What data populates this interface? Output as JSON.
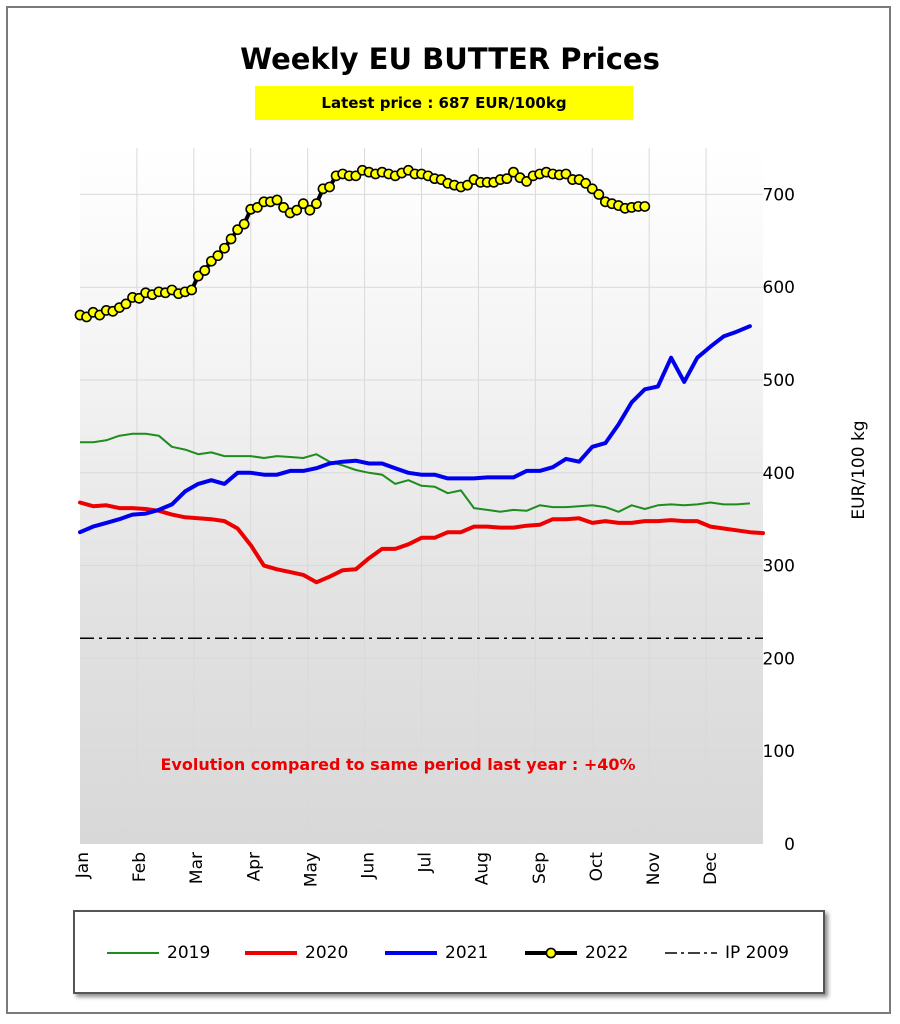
{
  "chart_data": {
    "type": "line",
    "title": "Weekly EU BUTTER Prices",
    "subtitle": "Latest price : 687 EUR/100kg",
    "annotation": "Evolution compared to same period last year : +40%",
    "ylabel": "EUR/100 kg",
    "ylim": [
      0,
      750
    ],
    "yticks": [
      "0",
      "100",
      "200",
      "300",
      "400",
      "500",
      "600",
      "700"
    ],
    "xlim": [
      0,
      52
    ],
    "categories": [
      "Jan",
      "Feb",
      "Mar",
      "Apr",
      "May",
      "Jun",
      "Jul",
      "Aug",
      "Sep",
      "Oct",
      "Nov",
      "Dec"
    ],
    "grid": true,
    "legend_position": "bottom",
    "series": [
      {
        "name": "2019",
        "color": "#1e8c1e",
        "style": "thin",
        "x": [
          0,
          1,
          2,
          3,
          4,
          5,
          6,
          7,
          8,
          9,
          10,
          11,
          12,
          13,
          14,
          15,
          16,
          17,
          18,
          19,
          20,
          21,
          22,
          23,
          24,
          25,
          26,
          27,
          28,
          29,
          30,
          31,
          32,
          33,
          34,
          35,
          36,
          37,
          38,
          39,
          40,
          41,
          42,
          43,
          44,
          45,
          46,
          47,
          48,
          49,
          50,
          51
        ],
        "values": [
          433,
          433,
          435,
          440,
          442,
          442,
          440,
          428,
          425,
          420,
          422,
          418,
          418,
          418,
          416,
          418,
          417,
          416,
          420,
          412,
          408,
          403,
          400,
          398,
          388,
          392,
          386,
          385,
          378,
          381,
          362,
          360,
          358,
          360,
          359,
          365,
          363,
          363,
          364,
          365,
          363,
          358,
          365,
          361,
          365,
          366,
          365,
          366,
          368,
          366,
          366,
          367
        ]
      },
      {
        "name": "2020",
        "color": "#ee0000",
        "style": "thick",
        "x": [
          0,
          1,
          2,
          3,
          4,
          5,
          6,
          7,
          8,
          9,
          10,
          11,
          12,
          13,
          14,
          15,
          16,
          17,
          18,
          19,
          20,
          21,
          22,
          23,
          24,
          25,
          26,
          27,
          28,
          29,
          30,
          31,
          32,
          33,
          34,
          35,
          36,
          37,
          38,
          39,
          40,
          41,
          42,
          43,
          44,
          45,
          46,
          47,
          48,
          49,
          50,
          51,
          52
        ],
        "values": [
          368,
          364,
          365,
          362,
          362,
          361,
          359,
          355,
          352,
          351,
          350,
          348,
          340,
          322,
          300,
          296,
          293,
          290,
          282,
          288,
          295,
          296,
          308,
          318,
          318,
          323,
          330,
          330,
          336,
          336,
          342,
          342,
          341,
          341,
          343,
          344,
          350,
          350,
          351,
          346,
          348,
          346,
          346,
          348,
          348,
          349,
          348,
          348,
          342,
          340,
          338,
          336,
          335
        ]
      },
      {
        "name": "2021",
        "color": "#0000ee",
        "style": "thick",
        "x": [
          0,
          1,
          2,
          3,
          4,
          5,
          6,
          7,
          8,
          9,
          10,
          11,
          12,
          13,
          14,
          15,
          16,
          17,
          18,
          19,
          20,
          21,
          22,
          23,
          24,
          25,
          26,
          27,
          28,
          29,
          30,
          31,
          32,
          33,
          34,
          35,
          36,
          37,
          38,
          39,
          40,
          41,
          42,
          43,
          44,
          45,
          46,
          47,
          48,
          49,
          50,
          51
        ],
        "values": [
          336,
          342,
          346,
          350,
          355,
          356,
          360,
          366,
          380,
          388,
          392,
          388,
          400,
          400,
          398,
          398,
          402,
          402,
          405,
          410,
          412,
          413,
          410,
          410,
          405,
          400,
          398,
          398,
          394,
          394,
          394,
          395,
          395,
          395,
          402,
          402,
          406,
          415,
          412,
          428,
          432,
          452,
          476,
          490,
          493,
          524,
          498,
          524,
          536,
          547,
          552,
          558
        ]
      },
      {
        "name": "2022",
        "color": "#000000",
        "marker_fill": "#ffff00",
        "style": "markers",
        "x": [
          0,
          0.5,
          1,
          1.5,
          2,
          2.5,
          3,
          3.5,
          4,
          4.5,
          5,
          5.5,
          6,
          6.5,
          7,
          7.5,
          8,
          8.5,
          9,
          9.5,
          10,
          10.5,
          11,
          11.5,
          12,
          12.5,
          13,
          13.5,
          14,
          14.5,
          15,
          15.5,
          16,
          16.5,
          17,
          17.5,
          18,
          18.5,
          19,
          19.5,
          20,
          20.5,
          21,
          21.5,
          22,
          22.5,
          23,
          23.5,
          24,
          24.5,
          25,
          25.5,
          26,
          26.5,
          27,
          27.5,
          28,
          28.5,
          29,
          29.5,
          30,
          30.5,
          31,
          31.5,
          32,
          32.5,
          33,
          33.5,
          34,
          34.5,
          35,
          35.5,
          36,
          36.5,
          37,
          37.5,
          38,
          38.5,
          39,
          39.5,
          40,
          40.5,
          41,
          41.5,
          42,
          42.5,
          43
        ],
        "values": [
          570,
          568,
          573,
          570,
          575,
          574,
          578,
          582,
          589,
          588,
          594,
          592,
          595,
          594,
          597,
          593,
          595,
          597,
          612,
          618,
          628,
          634,
          642,
          652,
          662,
          668,
          684,
          686,
          692,
          692,
          694,
          686,
          680,
          683,
          690,
          683,
          690,
          706,
          708,
          720,
          722,
          720,
          720,
          726,
          724,
          722,
          724,
          722,
          720,
          723,
          726,
          722,
          722,
          720,
          717,
          716,
          712,
          710,
          708,
          710,
          716,
          713,
          713,
          713,
          716,
          717,
          724,
          718,
          714,
          720,
          722,
          724,
          722,
          721,
          722,
          716,
          716,
          712,
          706,
          700,
          692,
          690,
          688,
          685,
          686,
          687,
          687
        ]
      },
      {
        "name": "IP 2009",
        "color": "#000000",
        "style": "dashdot",
        "x": [
          0,
          52
        ],
        "values": [
          221.75,
          221.75
        ]
      }
    ]
  }
}
